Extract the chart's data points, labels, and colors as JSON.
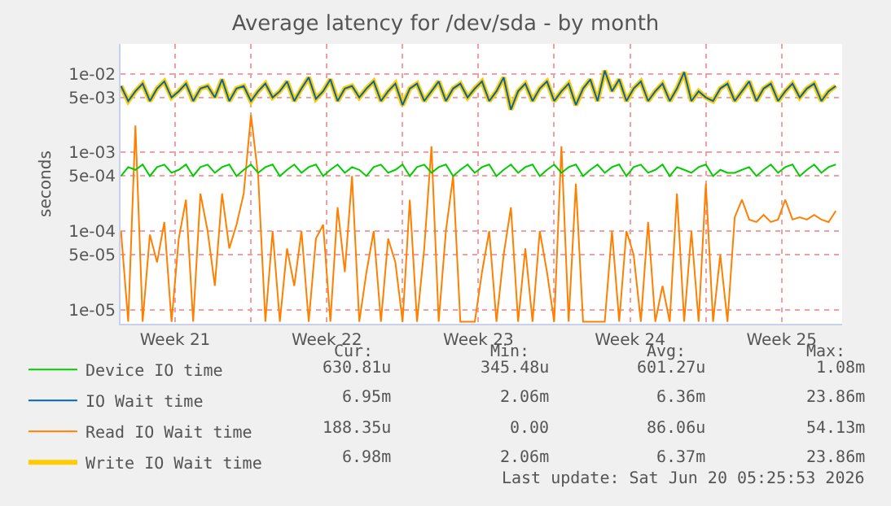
{
  "chart_data": {
    "type": "line",
    "title": "Average latency for /dev/sda - by month",
    "ylabel": "seconds",
    "log": "y",
    "grid": true,
    "legend": "bottom left",
    "xlim": [
      "2026-05-18T23:30",
      "2026-06-21T07:00"
    ],
    "xticks": [
      {
        "value": "2026-05-21T12:00",
        "label": "Week 21"
      },
      {
        "value": "2026-05-25",
        "label": null
      },
      {
        "value": "2026-05-28T12:00",
        "label": "Week 22"
      },
      {
        "value": "2026-06-01",
        "label": null
      },
      {
        "value": "2026-06-04T12:00",
        "label": "Week 23"
      },
      {
        "value": "2026-06-08",
        "label": null
      },
      {
        "value": "2026-06-11T12:00",
        "label": "Week 24"
      },
      {
        "value": "2026-06-15",
        "label": null
      },
      {
        "value": "2026-06-18T12:00",
        "label": "Week 25"
      }
    ],
    "ylim": [
      6.6e-06,
      0.024
    ],
    "yticks": [
      {
        "value": 0.01,
        "label": "1e-02"
      },
      {
        "value": 0.005,
        "label": "5e-03"
      },
      {
        "value": 0.001,
        "label": "1e-03"
      },
      {
        "value": 0.0005,
        "label": "5e-04"
      },
      {
        "value": 0.0001,
        "label": "1e-04"
      },
      {
        "value": 5e-05,
        "label": "5e-05"
      },
      {
        "value": 1e-05,
        "label": "1e-05"
      }
    ],
    "x": [
      "2026-05-19T00:00",
      "2026-05-19T08:00",
      "2026-05-19T16:00",
      "2026-05-20T00:00",
      "2026-05-20T08:00",
      "2026-05-20T16:00",
      "2026-05-21T00:00",
      "2026-05-21T08:00",
      "2026-05-21T16:00",
      "2026-05-22T00:00",
      "2026-05-22T08:00",
      "2026-05-22T16:00",
      "2026-05-23T00:00",
      "2026-05-23T08:00",
      "2026-05-23T16:00",
      "2026-05-24T00:00",
      "2026-05-24T08:00",
      "2026-05-24T16:00",
      "2026-05-25T00:00",
      "2026-05-25T08:00",
      "2026-05-25T16:00",
      "2026-05-26T00:00",
      "2026-05-26T08:00",
      "2026-05-26T16:00",
      "2026-05-27T00:00",
      "2026-05-27T08:00",
      "2026-05-27T16:00",
      "2026-05-28T00:00",
      "2026-05-28T08:00",
      "2026-05-28T16:00",
      "2026-05-29T00:00",
      "2026-05-29T08:00",
      "2026-05-29T16:00",
      "2026-05-30T00:00",
      "2026-05-30T08:00",
      "2026-05-30T16:00",
      "2026-05-31T00:00",
      "2026-05-31T08:00",
      "2026-05-31T16:00",
      "2026-06-01T00:00",
      "2026-06-01T08:00",
      "2026-06-01T16:00",
      "2026-06-02T00:00",
      "2026-06-02T08:00",
      "2026-06-02T16:00",
      "2026-06-03T00:00",
      "2026-06-03T08:00",
      "2026-06-03T16:00",
      "2026-06-04T00:00",
      "2026-06-04T08:00",
      "2026-06-04T16:00",
      "2026-06-05T00:00",
      "2026-06-05T08:00",
      "2026-06-05T16:00",
      "2026-06-06T00:00",
      "2026-06-06T08:00",
      "2026-06-06T16:00",
      "2026-06-07T00:00",
      "2026-06-07T08:00",
      "2026-06-07T16:00",
      "2026-06-08T00:00",
      "2026-06-08T08:00",
      "2026-06-08T16:00",
      "2026-06-09T00:00",
      "2026-06-09T08:00",
      "2026-06-09T16:00",
      "2026-06-10T00:00",
      "2026-06-10T08:00",
      "2026-06-10T16:00",
      "2026-06-11T00:00",
      "2026-06-11T08:00",
      "2026-06-11T16:00",
      "2026-06-12T00:00",
      "2026-06-12T08:00",
      "2026-06-12T16:00",
      "2026-06-13T00:00",
      "2026-06-13T08:00",
      "2026-06-13T16:00",
      "2026-06-14T00:00",
      "2026-06-14T08:00",
      "2026-06-14T16:00",
      "2026-06-15T00:00",
      "2026-06-15T08:00",
      "2026-06-15T16:00",
      "2026-06-16T00:00",
      "2026-06-16T08:00",
      "2026-06-16T16:00",
      "2026-06-17T00:00",
      "2026-06-17T08:00",
      "2026-06-17T16:00",
      "2026-06-18T00:00",
      "2026-06-18T08:00",
      "2026-06-18T16:00",
      "2026-06-19T00:00",
      "2026-06-19T08:00",
      "2026-06-19T16:00",
      "2026-06-20T00:00",
      "2026-06-20T08:00",
      "2026-06-20T16:00",
      "2026-06-21T00:00"
    ],
    "series": [
      {
        "name": "Device IO time",
        "color": "#00cc00",
        "values": [
          0.0005,
          0.00065,
          0.0006,
          0.0007,
          0.0005,
          0.00065,
          0.0007,
          0.00055,
          0.0006,
          0.0007,
          0.0005,
          0.00065,
          0.0007,
          0.00055,
          0.00065,
          0.0007,
          0.0005,
          0.0006,
          0.0007,
          0.00055,
          0.00065,
          0.0007,
          0.0005,
          0.0006,
          0.0007,
          0.00055,
          0.00065,
          0.0007,
          0.0005,
          0.0006,
          0.0007,
          0.00055,
          0.00065,
          0.0006,
          0.0005,
          0.00065,
          0.0007,
          0.00055,
          0.0006,
          0.0007,
          0.0005,
          0.00065,
          0.0007,
          0.00055,
          0.00065,
          0.0007,
          0.0005,
          0.0006,
          0.0007,
          0.00055,
          0.00065,
          0.0007,
          0.0005,
          0.0006,
          0.0007,
          0.00055,
          0.00065,
          0.0007,
          0.0005,
          0.0006,
          0.0007,
          0.00055,
          0.00065,
          0.0007,
          0.0005,
          0.0006,
          0.0007,
          0.00055,
          0.00065,
          0.0007,
          0.0005,
          0.00065,
          0.0007,
          0.00055,
          0.0006,
          0.0007,
          0.0005,
          0.00065,
          0.0006,
          0.00055,
          0.00065,
          0.0007,
          0.0005,
          0.0006,
          0.00055,
          0.00055,
          0.0006,
          0.00065,
          0.0005,
          0.0006,
          0.0007,
          0.00055,
          0.00065,
          0.0007,
          0.0005,
          0.0006,
          0.0007,
          0.00055,
          0.00065,
          0.0007
        ]
      },
      {
        "name": "IO Wait time",
        "color": "#0066b3",
        "values": [
          0.007,
          0.0045,
          0.006,
          0.0075,
          0.0045,
          0.0065,
          0.008,
          0.005,
          0.006,
          0.0075,
          0.0045,
          0.0065,
          0.007,
          0.005,
          0.0085,
          0.0045,
          0.0065,
          0.007,
          0.0045,
          0.006,
          0.0075,
          0.005,
          0.006,
          0.008,
          0.0045,
          0.0065,
          0.009,
          0.0048,
          0.006,
          0.0085,
          0.0045,
          0.0065,
          0.007,
          0.005,
          0.0065,
          0.008,
          0.0045,
          0.006,
          0.0075,
          0.004,
          0.0065,
          0.0075,
          0.0045,
          0.006,
          0.008,
          0.0045,
          0.0065,
          0.0075,
          0.005,
          0.0065,
          0.008,
          0.0045,
          0.006,
          0.009,
          0.0035,
          0.006,
          0.0075,
          0.0045,
          0.0065,
          0.008,
          0.0045,
          0.006,
          0.0075,
          0.004,
          0.0065,
          0.0085,
          0.0045,
          0.011,
          0.006,
          0.0085,
          0.0045,
          0.0065,
          0.008,
          0.0045,
          0.006,
          0.0075,
          0.0045,
          0.0065,
          0.0105,
          0.0045,
          0.006,
          0.005,
          0.0045,
          0.0065,
          0.0075,
          0.0045,
          0.006,
          0.008,
          0.0045,
          0.0065,
          0.0075,
          0.0045,
          0.006,
          0.0075,
          0.005,
          0.0065,
          0.0075,
          0.0045,
          0.006,
          0.007
        ]
      },
      {
        "name": "Read IO Wait time",
        "color": "#ff8000",
        "values": [
          0.0001,
          7e-06,
          0.0022,
          7e-06,
          9e-05,
          4e-05,
          0.00013,
          7e-06,
          8e-05,
          0.00025,
          7e-06,
          0.0003,
          0.0001,
          2e-05,
          0.0003,
          6e-05,
          0.00012,
          0.0003,
          0.003,
          0.0005,
          7e-06,
          0.0001,
          7e-06,
          6e-05,
          2e-05,
          0.0001,
          7e-06,
          8e-05,
          0.00012,
          7e-06,
          0.0002,
          3e-05,
          0.0005,
          7e-06,
          3e-05,
          0.0001,
          7e-06,
          8e-05,
          4e-05,
          7e-06,
          0.00025,
          7e-06,
          6e-05,
          0.0012,
          7e-06,
          0.0001,
          0.0005,
          7e-06,
          7e-06,
          7e-06,
          3e-05,
          0.0001,
          7e-06,
          5e-05,
          0.0002,
          7e-06,
          6e-05,
          7e-06,
          0.0001,
          3e-05,
          7e-06,
          0.0012,
          7e-06,
          0.0004,
          7e-06,
          7e-06,
          7e-06,
          7e-06,
          0.0001,
          7e-06,
          0.0001,
          5e-05,
          7e-06,
          0.00013,
          7e-06,
          2e-05,
          7e-06,
          0.0003,
          7e-06,
          0.0001,
          7e-06,
          0.0004,
          7e-06,
          5e-05,
          7e-06,
          0.00015,
          0.00025,
          0.00014,
          0.00013,
          0.00016,
          0.00013,
          0.00014,
          0.00025,
          0.00014,
          0.00015,
          0.00014,
          0.00016,
          0.00014,
          0.00013,
          0.00018
        ]
      },
      {
        "name": "Write IO Wait time",
        "color": "#ffcc00",
        "values": [
          0.007,
          0.0045,
          0.006,
          0.0075,
          0.0045,
          0.0065,
          0.008,
          0.005,
          0.006,
          0.0075,
          0.0045,
          0.0065,
          0.007,
          0.005,
          0.0085,
          0.0045,
          0.0065,
          0.007,
          0.0045,
          0.006,
          0.0075,
          0.005,
          0.006,
          0.008,
          0.0045,
          0.0065,
          0.009,
          0.0048,
          0.006,
          0.0085,
          0.0045,
          0.0065,
          0.007,
          0.005,
          0.0065,
          0.008,
          0.0045,
          0.006,
          0.0075,
          0.004,
          0.0065,
          0.0075,
          0.0045,
          0.006,
          0.008,
          0.0045,
          0.0065,
          0.0075,
          0.005,
          0.0065,
          0.008,
          0.0045,
          0.006,
          0.009,
          0.0035,
          0.006,
          0.0075,
          0.0045,
          0.0065,
          0.008,
          0.0045,
          0.006,
          0.0075,
          0.004,
          0.0065,
          0.0085,
          0.0045,
          0.011,
          0.006,
          0.0085,
          0.0045,
          0.0065,
          0.008,
          0.0045,
          0.006,
          0.0075,
          0.0045,
          0.0065,
          0.0105,
          0.0045,
          0.006,
          0.005,
          0.0045,
          0.0065,
          0.0075,
          0.0045,
          0.006,
          0.008,
          0.0045,
          0.0065,
          0.0075,
          0.0045,
          0.006,
          0.0075,
          0.005,
          0.0065,
          0.0075,
          0.0045,
          0.006,
          0.007
        ]
      }
    ],
    "annotations": [
      "Cur:",
      "Min:",
      "Avg:",
      "Max:",
      "630.81u",
      "345.48u",
      "601.27u",
      "1.08m",
      "6.95m",
      "2.06m",
      "6.36m",
      "23.86m",
      "188.35u",
      "0.00",
      "86.06u",
      "54.13m",
      "6.98m",
      "2.06m",
      "6.37m",
      "23.86m",
      "Last update: Sat Jun 20 05:25:53 2026"
    ]
  }
}
